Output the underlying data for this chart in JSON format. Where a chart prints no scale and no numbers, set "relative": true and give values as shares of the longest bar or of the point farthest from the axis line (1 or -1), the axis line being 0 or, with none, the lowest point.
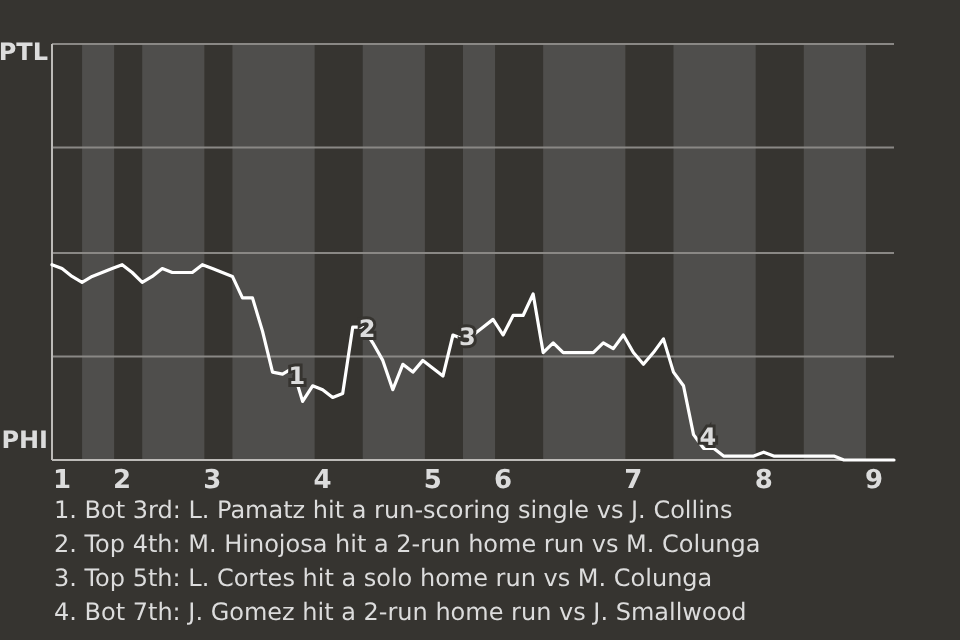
{
  "chart_data": {
    "type": "line",
    "relative": true,
    "categories": [
      null,
      "1",
      null,
      null,
      null,
      null,
      null,
      "2",
      null,
      null,
      null,
      null,
      null,
      null,
      null,
      null,
      "3",
      null,
      null,
      null,
      null,
      null,
      null,
      null,
      null,
      null,
      null,
      "4",
      null,
      null,
      null,
      null,
      null,
      null,
      null,
      null,
      null,
      null,
      "5",
      null,
      null,
      null,
      null,
      null,
      null,
      "6",
      null,
      null,
      null,
      null,
      null,
      null,
      null,
      null,
      null,
      null,
      null,
      null,
      "7",
      null,
      null,
      null,
      null,
      null,
      null,
      null,
      null,
      null,
      null,
      null,
      null,
      "8",
      null,
      null,
      null,
      null,
      null,
      null,
      null,
      null,
      null,
      null,
      "9",
      null,
      null
    ],
    "series": [
      {
        "color": "#ffffff",
        "values": [
          1,
          0.98,
          0.94,
          0.91,
          0.94,
          0.96,
          0.98,
          1,
          0.96,
          0.91,
          0.94,
          0.98,
          0.96,
          0.96,
          0.96,
          1,
          0.98,
          0.96,
          0.94,
          0.83,
          0.83,
          0.66,
          0.45,
          0.44,
          0.47,
          0.3,
          0.38,
          0.36,
          0.32,
          0.34,
          0.68,
          0.68,
          0.6,
          0.51,
          0.36,
          0.49,
          0.45,
          0.51,
          0.47,
          0.43,
          0.64,
          0.62,
          0.64,
          0.68,
          0.72,
          0.64,
          0.74,
          0.74,
          0.85,
          0.55,
          0.6,
          0.55,
          0.55,
          0.55,
          0.55,
          0.6,
          0.57,
          0.64,
          0.55,
          0.49,
          0.55,
          0.62,
          0.45,
          0.38,
          0.13,
          0.06,
          0.06,
          0.02,
          0.02,
          0.02,
          0.02,
          0.04,
          0.02,
          0.02,
          0.02,
          0.02,
          0.02,
          0.02,
          0.02,
          0,
          0,
          0,
          0,
          0,
          0
        ]
      }
    ],
    "ref_lines": [
      {
        "axis": "y",
        "value": 0.53,
        "color": "#8a8885"
      },
      {
        "axis": "y",
        "value": 1.06,
        "color": "#8a8885"
      },
      {
        "axis": "y",
        "value": 1.6,
        "color": "#8a8885"
      },
      {
        "axis": "y",
        "value": 2.13,
        "color": "#8a8885"
      }
    ],
    "annotations": [
      "PTL",
      "PHI",
      {
        "text": "1",
        "y": 0.44
      },
      {
        "text": "2",
        "y": 0.68
      },
      {
        "text": "3",
        "y": 0.64
      },
      {
        "text": "4",
        "y": 0.13
      },
      "1. Bot 3rd: L. Pamatz hit a run-scoring single vs J. Collins",
      "2. Top 4th: M. Hinojosa hit a 2-run home run vs M. Colunga",
      "3. Top 5th: L. Cortes hit a solo home run vs M. Colunga",
      "4. Bot 7th: J. Gomez hit a 2-run home run vs J. Smallwood"
    ],
    "line_style": "solid",
    "marker": "none"
  }
}
